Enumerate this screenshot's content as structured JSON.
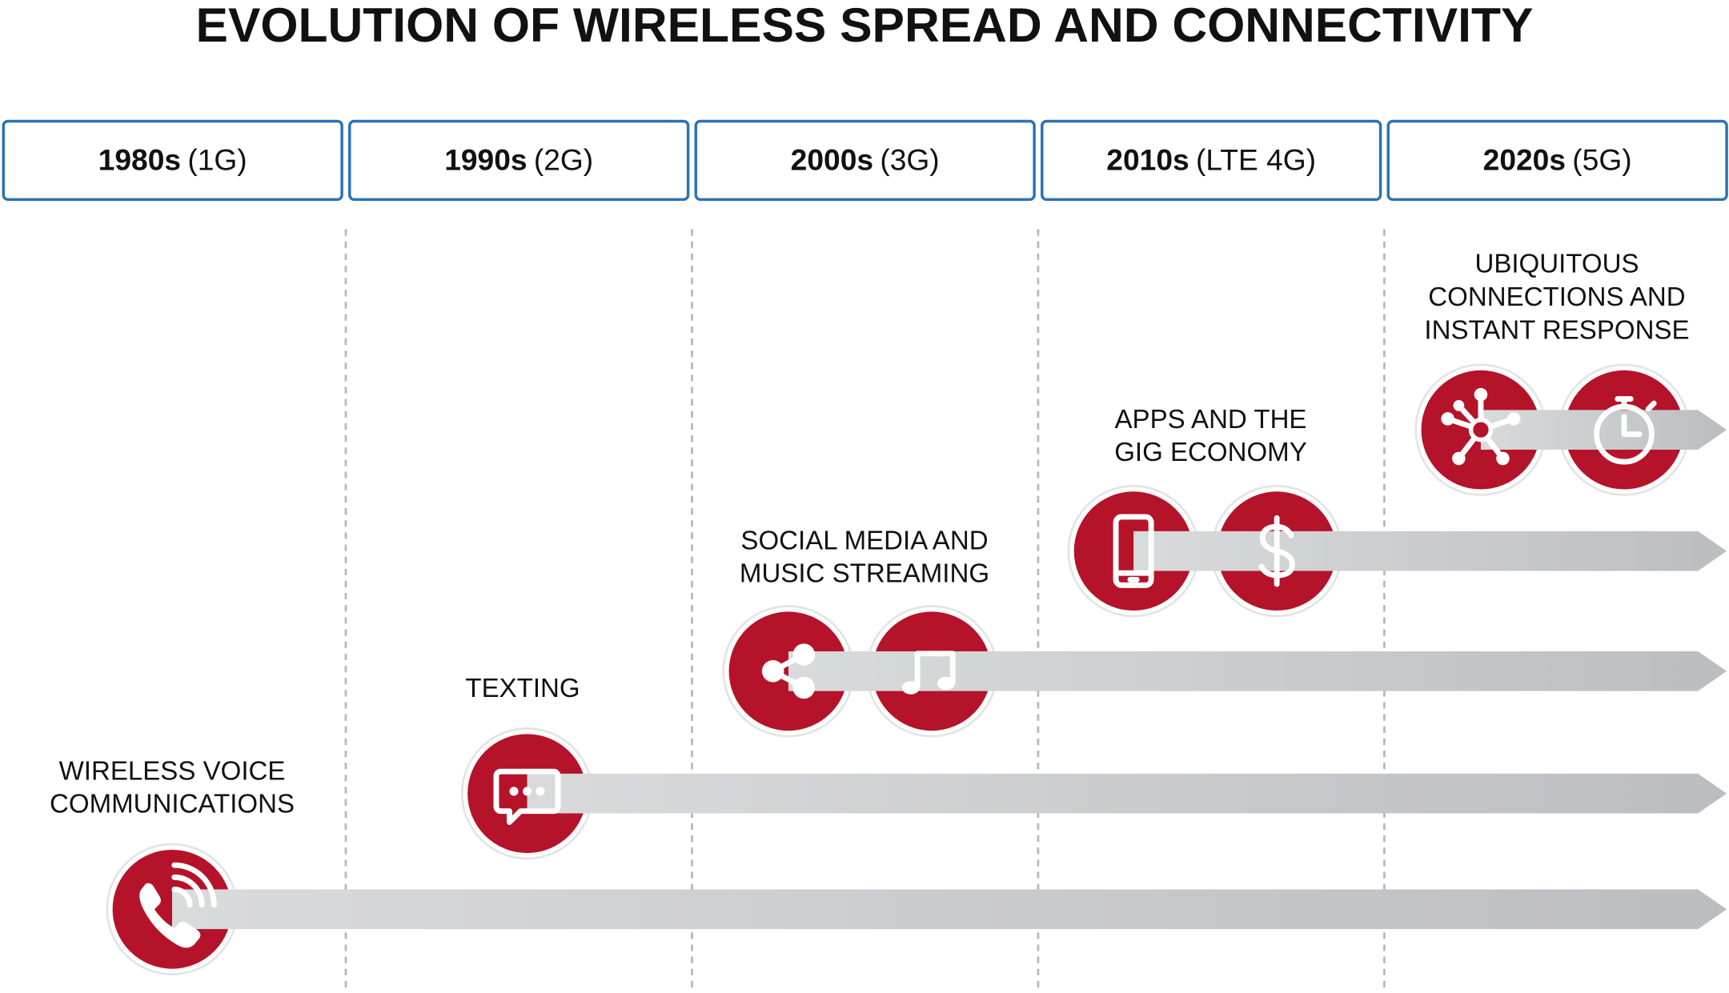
{
  "title": "EVOLUTION OF WIRELESS SPREAD AND CONNECTIVITY",
  "eras": [
    {
      "decade": "1980s",
      "generation": "(1G)"
    },
    {
      "decade": "1990s",
      "generation": "(2G)"
    },
    {
      "decade": "2000s",
      "generation": "(3G)"
    },
    {
      "decade": "2010s",
      "generation": "(LTE 4G)"
    },
    {
      "decade": "2020s",
      "generation": "(5G)"
    }
  ],
  "milestones": [
    {
      "lines": [
        "WIRELESS VOICE",
        "COMMUNICATIONS"
      ]
    },
    {
      "lines": [
        "TEXTING"
      ]
    },
    {
      "lines": [
        "SOCIAL MEDIA AND",
        "MUSIC STREAMING"
      ]
    },
    {
      "lines": [
        "APPS AND THE",
        "GIG ECONOMY"
      ]
    },
    {
      "lines": [
        "UBIQUITOUS",
        "CONNECTIONS AND",
        "INSTANT RESPONSE"
      ]
    }
  ]
}
